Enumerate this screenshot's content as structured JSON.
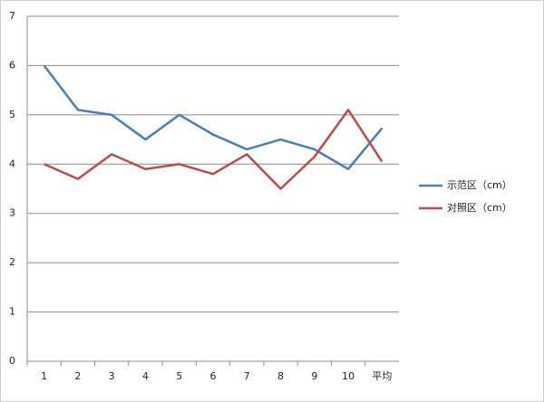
{
  "chart_data": {
    "type": "line",
    "categories": [
      "1",
      "2",
      "3",
      "4",
      "5",
      "6",
      "7",
      "8",
      "9",
      "10",
      "平均"
    ],
    "series": [
      {
        "name": "示范区（cm）",
        "color": "#4a7ebb",
        "values": [
          6.0,
          5.1,
          5.0,
          4.5,
          5.0,
          4.6,
          4.3,
          4.5,
          4.3,
          3.9,
          4.73
        ]
      },
      {
        "name": "对照区（cm）",
        "color": "#be4b48",
        "values": [
          4.0,
          3.7,
          4.2,
          3.9,
          4.0,
          3.8,
          4.2,
          3.5,
          4.15,
          5.1,
          4.05
        ]
      }
    ],
    "ylim": [
      0,
      7
    ],
    "yticks": [
      0,
      1,
      2,
      3,
      4,
      5,
      6,
      7
    ],
    "grid": true,
    "legend": "right"
  }
}
